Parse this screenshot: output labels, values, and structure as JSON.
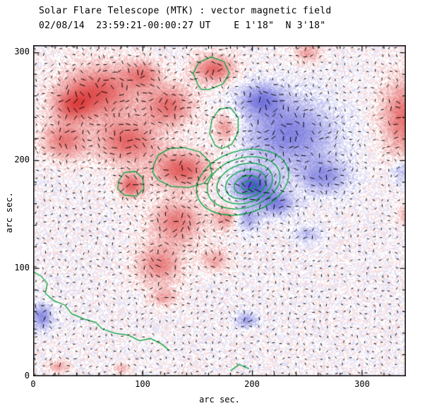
{
  "header": {
    "title": "Solar Flare Telescope (MTK) : vector magnetic field",
    "subtitle": "02/08/14  23:59:21-00:00:27 UT    E 1'18\"  N 3'18\""
  },
  "axes": {
    "xlabel": "arc sec.",
    "ylabel": "arc sec.",
    "xticks": [
      "0",
      "100",
      "200",
      "300"
    ],
    "yticks": [
      "0",
      "100",
      "200",
      "300"
    ]
  },
  "chart_data": {
    "type": "heatmap",
    "title": "Solar Flare Telescope (MTK) : vector magnetic field",
    "subtitle": "02/08/14  23:59:21-00:00:27 UT    E 1'18\"  N 3'18\"",
    "xlabel": "arc sec.",
    "ylabel": "arc sec.",
    "xticks": [
      0,
      100,
      200,
      300
    ],
    "yticks": [
      0,
      100,
      200,
      300
    ],
    "xrange": [
      0,
      340
    ],
    "yrange": [
      0,
      307
    ],
    "legend": "red = positive magnetic polarity, blue = negative magnetic polarity, black ticks = transverse field vectors, green = contours / neutral line",
    "polarity_colors": {
      "positive": "#de4343",
      "negative": "#5a5ad7",
      "background": "#ffffff",
      "contour": "#00a53c",
      "vector": "#000000",
      "frame": "#000000"
    },
    "blobs": [
      [
        60,
        264,
        36,
        26,
        0.85
      ],
      [
        28,
        218,
        22,
        18,
        0.7
      ],
      [
        86,
        218,
        30,
        22,
        0.8
      ],
      [
        124,
        251,
        24,
        20,
        0.75
      ],
      [
        35,
        250,
        20,
        16,
        0.6
      ],
      [
        100,
        280,
        18,
        14,
        0.6
      ],
      [
        165,
        285,
        20,
        14,
        0.8
      ],
      [
        338,
        240,
        22,
        38,
        0.75
      ],
      [
        136,
        192,
        28,
        18,
        0.85
      ],
      [
        89,
        177,
        13,
        12,
        0.8
      ],
      [
        131,
        143,
        25,
        22,
        0.7
      ],
      [
        176,
        146,
        12,
        12,
        0.6
      ],
      [
        115,
        103,
        22,
        20,
        0.65
      ],
      [
        166,
        108,
        14,
        11,
        0.5
      ],
      [
        120,
        73,
        13,
        9,
        0.45
      ],
      [
        24,
        9,
        10,
        6,
        0.5
      ],
      [
        81,
        7,
        8,
        5,
        0.4
      ],
      [
        176,
        230,
        12,
        16,
        0.6
      ],
      [
        342,
        150,
        10,
        12,
        0.45
      ],
      [
        250,
        300,
        14,
        9,
        0.5
      ],
      [
        234,
        225,
        44,
        34,
        -0.75
      ],
      [
        200,
        177,
        20,
        15,
        -1.0
      ],
      [
        266,
        185,
        24,
        17,
        -0.6
      ],
      [
        208,
        257,
        22,
        16,
        -0.65
      ],
      [
        195,
        146,
        12,
        13,
        -0.55
      ],
      [
        250,
        131,
        14,
        9,
        -0.4
      ],
      [
        8,
        55,
        10,
        13,
        -0.7
      ],
      [
        195,
        52,
        11,
        8,
        -0.55
      ],
      [
        336,
        190,
        10,
        12,
        -0.45
      ],
      [
        222,
        160,
        18,
        13,
        -0.7
      ]
    ],
    "contour_rings": {
      "cx": 196,
      "cy": 177,
      "rot": -0.3,
      "radii": [
        [
          6,
          4
        ],
        [
          12,
          8
        ],
        [
          19,
          13
        ],
        [
          26,
          18
        ],
        [
          34,
          23
        ],
        [
          43,
          29
        ]
      ]
    },
    "contour_loops": [
      [
        [
          110,
          196
        ],
        [
          114,
          205
        ],
        [
          124,
          211
        ],
        [
          138,
          212
        ],
        [
          152,
          208
        ],
        [
          161,
          199
        ],
        [
          163,
          188
        ],
        [
          156,
          179
        ],
        [
          142,
          175
        ],
        [
          126,
          176
        ],
        [
          114,
          182
        ],
        [
          109,
          189
        ]
      ],
      [
        [
          78,
          181
        ],
        [
          83,
          189
        ],
        [
          93,
          190
        ],
        [
          100,
          184
        ],
        [
          101,
          174
        ],
        [
          94,
          167
        ],
        [
          83,
          168
        ],
        [
          77,
          174
        ]
      ],
      [
        [
          166,
          214
        ],
        [
          161,
          225
        ],
        [
          163,
          238
        ],
        [
          170,
          248
        ],
        [
          180,
          249
        ],
        [
          187,
          240
        ],
        [
          187,
          226
        ],
        [
          181,
          215
        ],
        [
          172,
          211
        ]
      ],
      [
        [
          150,
          271
        ],
        [
          146,
          281
        ],
        [
          151,
          291
        ],
        [
          162,
          296
        ],
        [
          174,
          292
        ],
        [
          179,
          281
        ],
        [
          173,
          271
        ],
        [
          161,
          266
        ],
        [
          153,
          266
        ]
      ]
    ],
    "contour_lines": [
      [
        [
          0,
          97
        ],
        [
          7,
          93
        ],
        [
          13,
          86
        ],
        [
          11,
          77
        ],
        [
          19,
          70
        ],
        [
          29,
          66
        ],
        [
          35,
          58
        ],
        [
          47,
          53
        ],
        [
          57,
          50
        ],
        [
          63,
          44
        ],
        [
          74,
          40
        ],
        [
          87,
          38
        ],
        [
          97,
          33
        ],
        [
          107,
          35
        ],
        [
          117,
          30
        ],
        [
          124,
          24
        ]
      ],
      [
        [
          180,
          5
        ],
        [
          188,
          11
        ],
        [
          197,
          7
        ]
      ]
    ],
    "vector_grid": {
      "step": 7,
      "jitter": 1.6,
      "base_len": 2.8,
      "len_scale": 5.5,
      "skip": 0.12,
      "swirl_radius": 40
    },
    "tick_minor_step": 20
  }
}
